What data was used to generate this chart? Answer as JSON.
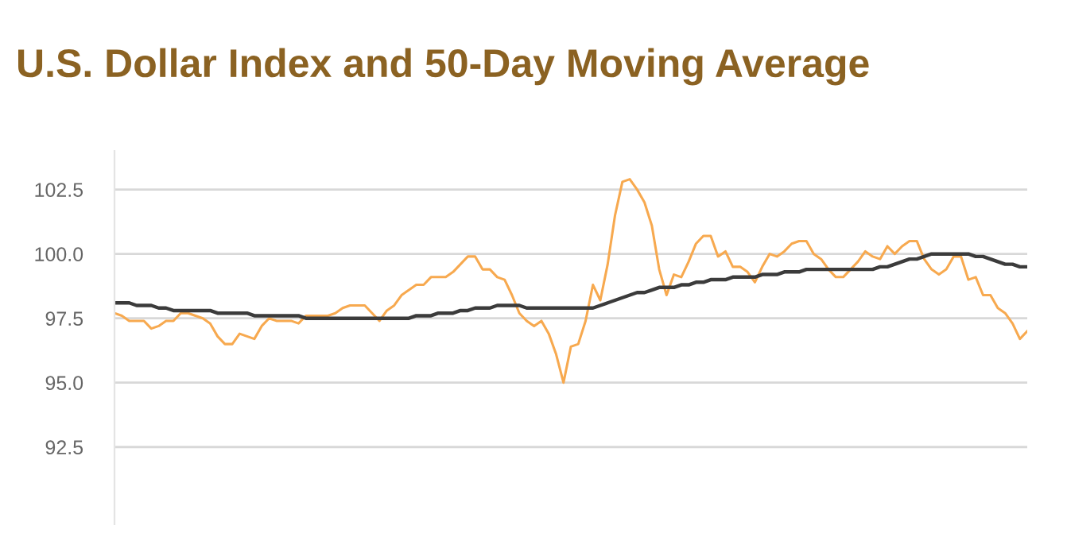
{
  "chart_data": {
    "type": "line",
    "title": "U.S. Dollar Index and 50-Day Moving Average",
    "categories": [
      null,
      null,
      null,
      null,
      null,
      null,
      null,
      null,
      null,
      null,
      null,
      null,
      null,
      null,
      null,
      null,
      null,
      null,
      null,
      null,
      null,
      null,
      null,
      null,
      null,
      null,
      null,
      null,
      null,
      null,
      null,
      null,
      null,
      null,
      null,
      null,
      null,
      null,
      null,
      null,
      null,
      null,
      null,
      null,
      null,
      null,
      null,
      null,
      null,
      null,
      null,
      null,
      null,
      null,
      null,
      null,
      null,
      null,
      null,
      null,
      null,
      null,
      null,
      null,
      null,
      null,
      null,
      null,
      null,
      null,
      null,
      null,
      null,
      null,
      null,
      null,
      null,
      null,
      null,
      null,
      null,
      null,
      null,
      null,
      null,
      null,
      null,
      null,
      null,
      null,
      null,
      null,
      null,
      null,
      null,
      null,
      null,
      null,
      null,
      null,
      null,
      null,
      null,
      null,
      null,
      null,
      null,
      null,
      null,
      null,
      null,
      null,
      null,
      null,
      null,
      null,
      null,
      null,
      null,
      null,
      null,
      null,
      null,
      null,
      null
    ],
    "series": [
      {
        "color": "#f7a94f",
        "values": [
          97.7,
          97.6,
          97.4,
          97.4,
          97.4,
          97.1,
          97.2,
          97.4,
          97.4,
          97.7,
          97.7,
          97.6,
          97.5,
          97.3,
          96.8,
          96.5,
          96.5,
          96.9,
          96.8,
          96.7,
          97.2,
          97.5,
          97.4,
          97.4,
          97.4,
          97.3,
          97.6,
          97.6,
          97.6,
          97.6,
          97.7,
          97.9,
          98.0,
          98.0,
          98.0,
          97.7,
          97.4,
          97.8,
          98.0,
          98.4,
          98.6,
          98.8,
          98.8,
          99.1,
          99.1,
          99.1,
          99.3,
          99.6,
          99.9,
          99.9,
          99.4,
          99.4,
          99.1,
          99.0,
          98.4,
          97.7,
          97.4,
          97.2,
          97.4,
          96.9,
          96.1,
          95.0,
          96.4,
          96.5,
          97.4,
          98.8,
          98.2,
          99.6,
          101.5,
          102.8,
          102.9,
          102.5,
          102.0,
          101.1,
          99.4,
          98.4,
          99.2,
          99.1,
          99.7,
          100.4,
          100.7,
          100.7,
          99.9,
          100.1,
          99.5,
          99.5,
          99.3,
          98.9,
          99.5,
          100.0,
          99.9,
          100.1,
          100.4,
          100.5,
          100.5,
          100.0,
          99.8,
          99.4,
          99.1,
          99.1,
          99.4,
          99.7,
          100.1,
          99.9,
          99.8,
          100.3,
          100.0,
          100.3,
          100.5,
          100.5,
          99.8,
          99.4,
          99.2,
          99.4,
          99.9,
          99.9,
          99.0,
          99.1,
          98.4,
          98.4,
          97.9,
          97.7,
          97.3,
          96.7,
          97.0
        ]
      },
      {
        "color": "#3b3b3b",
        "values": [
          98.1,
          98.1,
          98.1,
          98.0,
          98.0,
          98.0,
          97.9,
          97.9,
          97.8,
          97.8,
          97.8,
          97.8,
          97.8,
          97.8,
          97.7,
          97.7,
          97.7,
          97.7,
          97.7,
          97.6,
          97.6,
          97.6,
          97.6,
          97.6,
          97.6,
          97.6,
          97.5,
          97.5,
          97.5,
          97.5,
          97.5,
          97.5,
          97.5,
          97.5,
          97.5,
          97.5,
          97.5,
          97.5,
          97.5,
          97.5,
          97.5,
          97.6,
          97.6,
          97.6,
          97.7,
          97.7,
          97.7,
          97.8,
          97.8,
          97.9,
          97.9,
          97.9,
          98.0,
          98.0,
          98.0,
          98.0,
          97.9,
          97.9,
          97.9,
          97.9,
          97.9,
          97.9,
          97.9,
          97.9,
          97.9,
          97.9,
          98.0,
          98.1,
          98.2,
          98.3,
          98.4,
          98.5,
          98.5,
          98.6,
          98.7,
          98.7,
          98.7,
          98.8,
          98.8,
          98.9,
          98.9,
          99.0,
          99.0,
          99.0,
          99.1,
          99.1,
          99.1,
          99.1,
          99.2,
          99.2,
          99.2,
          99.3,
          99.3,
          99.3,
          99.4,
          99.4,
          99.4,
          99.4,
          99.4,
          99.4,
          99.4,
          99.4,
          99.4,
          99.4,
          99.5,
          99.5,
          99.6,
          99.7,
          99.8,
          99.8,
          99.9,
          100.0,
          100.0,
          100.0,
          100.0,
          100.0,
          100.0,
          99.9,
          99.9,
          99.8,
          99.7,
          99.6,
          99.6,
          99.5,
          99.5
        ]
      }
    ],
    "ylim": [
      89.5,
      104
    ],
    "yticks": [
      92.5,
      {
        "value": 95,
        "label": "95.0"
      },
      97.5,
      {
        "value": 100,
        "label": "100.0"
      },
      102.5
    ],
    "grid": "y",
    "legend": false
  }
}
